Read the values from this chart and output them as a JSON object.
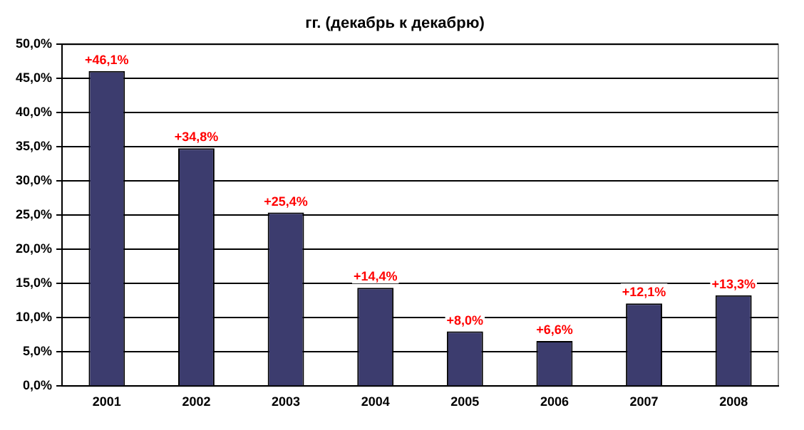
{
  "chart_data": {
    "type": "bar",
    "title": "гг. (декабрь к декабрю)",
    "categories": [
      "2001",
      "2002",
      "2003",
      "2004",
      "2005",
      "2006",
      "2007",
      "2008"
    ],
    "values": [
      46.1,
      34.8,
      25.4,
      14.4,
      8.0,
      6.6,
      12.1,
      13.3
    ],
    "value_labels": [
      "+46,1%",
      "+34,8%",
      "+25,4%",
      "+14,4%",
      "+8,0%",
      "+6,6%",
      "+12,1%",
      "+13,3%"
    ],
    "color": "#3c3c6e",
    "ylim": [
      0,
      50
    ],
    "yticks": [
      {
        "value": 0,
        "label": "0,0%"
      },
      {
        "value": 5,
        "label": "5,0%"
      },
      {
        "value": 10,
        "label": "10,0%"
      },
      {
        "value": 15,
        "label": "15,0%"
      },
      {
        "value": 20,
        "label": "20,0%"
      },
      {
        "value": 25,
        "label": "25,0%"
      },
      {
        "value": 30,
        "label": "30,0%"
      },
      {
        "value": 35,
        "label": "35,0%"
      },
      {
        "value": 40,
        "label": "40,0%"
      },
      {
        "value": 45,
        "label": "45,0%"
      },
      {
        "value": 50,
        "label": "50,0%"
      }
    ],
    "grid": "y"
  }
}
